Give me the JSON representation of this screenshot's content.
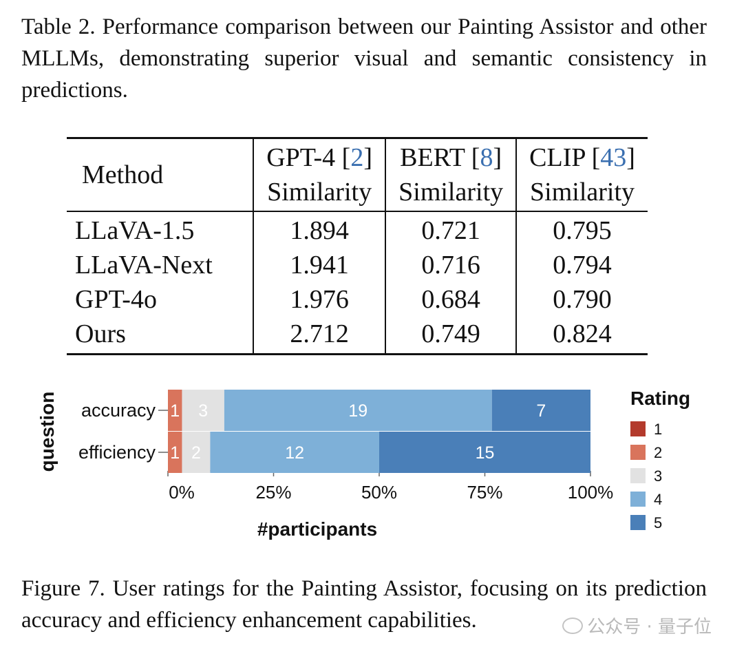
{
  "table_caption": "Table 2.  Performance comparison between our Painting Assistor and other MLLMs, demonstrating superior visual and semantic consistency in predictions.",
  "table": {
    "method_header": "Method",
    "columns": [
      {
        "name": "GPT-4",
        "ref": "2",
        "sub": "Similarity"
      },
      {
        "name": "BERT",
        "ref": "8",
        "sub": "Similarity"
      },
      {
        "name": "CLIP",
        "ref": "43",
        "sub": "Similarity"
      }
    ],
    "rows": [
      {
        "method": "LLaVA-1.5",
        "values": [
          "1.894",
          "0.721",
          "0.795"
        ]
      },
      {
        "method": "LLaVA-Next",
        "values": [
          "1.941",
          "0.716",
          "0.794"
        ]
      },
      {
        "method": "GPT-4o",
        "values": [
          "1.976",
          "0.684",
          "0.790"
        ]
      },
      {
        "method": "Ours",
        "values": [
          "2.712",
          "0.749",
          "0.824"
        ]
      }
    ]
  },
  "chart_data": {
    "type": "bar",
    "orientation": "horizontal",
    "stacked": true,
    "normalized": true,
    "categories": [
      "accuracy",
      "efficiency"
    ],
    "series": [
      {
        "name": "1",
        "color": "#b33a2c",
        "values": [
          0,
          0
        ]
      },
      {
        "name": "2",
        "color": "#d9745c",
        "values": [
          1,
          1
        ]
      },
      {
        "name": "3",
        "color": "#e2e2e2",
        "values": [
          3,
          2
        ]
      },
      {
        "name": "4",
        "color": "#7eb0d8",
        "values": [
          19,
          12
        ]
      },
      {
        "name": "5",
        "color": "#4a7fb8",
        "values": [
          7,
          15
        ]
      }
    ],
    "xlabel": "#participants",
    "ylabel": "question",
    "xticks": [
      "0%",
      "25%",
      "50%",
      "75%",
      "100%"
    ],
    "xlim": [
      0,
      100
    ],
    "legend_title": "Rating",
    "legend_position": "right"
  },
  "figure_caption": "Figure 7.  User ratings for the Painting Assistor, focusing on its prediction accuracy and efficiency enhancement capabilities.",
  "watermark": "公众号 · 量子位"
}
